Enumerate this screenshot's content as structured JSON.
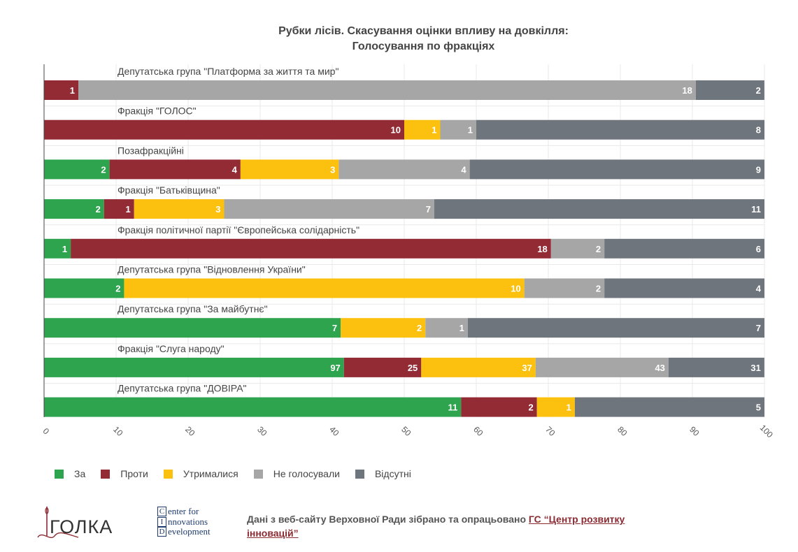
{
  "chart_data": {
    "type": "bar",
    "orientation": "horizontal",
    "stacked": true,
    "title": [
      "Рубки лісів. Скасування оцінки впливу на довкілля:",
      "Голосування по фракціях"
    ],
    "xlim": [
      0,
      100
    ],
    "xticks": [
      "0",
      "10",
      "20",
      "30",
      "40",
      "50",
      "60",
      "70",
      "80",
      "90",
      "100"
    ],
    "grid": true,
    "legend_position": "bottom-left",
    "series": [
      {
        "name": "За",
        "color": "#2ea44f"
      },
      {
        "name": "Проти",
        "color": "#932b35"
      },
      {
        "name": "Утрималися",
        "color": "#fcc10f"
      },
      {
        "name": "Не голосували",
        "color": "#a6a6a6"
      },
      {
        "name": "Відсутні",
        "color": "#6e757d"
      }
    ],
    "categories": [
      {
        "label": "Депутатська група \"Платформа за життя та мир\"",
        "counts": [
          0,
          1,
          0,
          18,
          2
        ],
        "percent": [
          0,
          4.76,
          0,
          85.71,
          9.52
        ]
      },
      {
        "label": "Фракція \"ГОЛОС\"",
        "counts": [
          0,
          10,
          1,
          1,
          8
        ],
        "percent": [
          0,
          50,
          5,
          5,
          40
        ]
      },
      {
        "label": "Позафракційні",
        "counts": [
          2,
          4,
          3,
          4,
          9
        ],
        "percent": [
          9.09,
          18.18,
          13.64,
          18.18,
          40.91
        ]
      },
      {
        "label": "Фракція \"Батьківщина\"",
        "counts": [
          2,
          1,
          3,
          7,
          11
        ],
        "percent": [
          8.33,
          4.17,
          12.5,
          29.17,
          45.83
        ]
      },
      {
        "label": "Фракція політичної партії \"Європейська солідарність\"",
        "counts": [
          1,
          18,
          0,
          2,
          6
        ],
        "percent": [
          3.7,
          66.67,
          0,
          7.41,
          22.22
        ]
      },
      {
        "label": "Депутатська група \"Відновлення України\"",
        "counts": [
          2,
          0,
          10,
          2,
          4
        ],
        "percent": [
          11.11,
          0,
          55.56,
          11.11,
          22.22
        ]
      },
      {
        "label": "Депутатська група \"За майбутнє\"",
        "counts": [
          7,
          0,
          2,
          1,
          7
        ],
        "percent": [
          41.18,
          0,
          11.76,
          5.88,
          41.18
        ]
      },
      {
        "label": "Фракція \"Слуга народу\"",
        "counts": [
          97,
          25,
          37,
          43,
          31
        ],
        "percent": [
          41.63,
          10.73,
          15.88,
          18.45,
          13.3
        ]
      },
      {
        "label": "Депутатська група \"ДОВІРА\"",
        "counts": [
          11,
          2,
          1,
          0,
          5
        ],
        "percent": [
          57.89,
          10.53,
          5.26,
          0,
          26.32
        ]
      }
    ]
  },
  "footer": {
    "golka_logo_text": "ГОЛКА",
    "cid_lines": [
      {
        "initial": "C",
        "rest": "enter for"
      },
      {
        "initial": "I",
        "rest": "nnovations"
      },
      {
        "initial": "D",
        "rest": "evelopment"
      }
    ],
    "source_prefix": "Дані з веб-сайту Верховної Ради зібрано та опрацьовано ",
    "source_link": "ГС “Центр розвитку інновацій”"
  }
}
